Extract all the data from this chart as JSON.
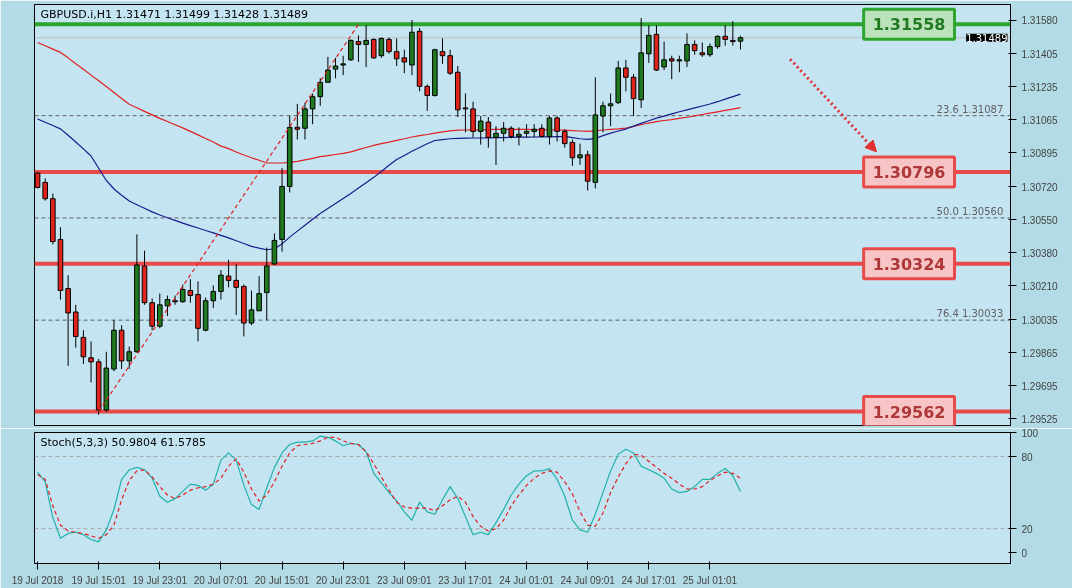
{
  "chart_data": [
    {
      "type": "candlestick",
      "title": "GBPUSD.i,H1  1.31471 1.31499 1.31428 1.31489",
      "categories": [
        null,
        null,
        null,
        null,
        null,
        null,
        null,
        null,
        null,
        null,
        null,
        null,
        null,
        null,
        null,
        null,
        null,
        null,
        null,
        null,
        null,
        null,
        null,
        null,
        null,
        null,
        null,
        null,
        null,
        null,
        null,
        null,
        null,
        null,
        null,
        null,
        null,
        null,
        null,
        null,
        null,
        null,
        null,
        null,
        null,
        null,
        null,
        null,
        null,
        null,
        null,
        null,
        null,
        null,
        null,
        null,
        null,
        null,
        null,
        null,
        null,
        null,
        null,
        null,
        null,
        null,
        null,
        null,
        null,
        null,
        null,
        null,
        null,
        null,
        null,
        null,
        null,
        null,
        null,
        null,
        null,
        null,
        null,
        null,
        null,
        null,
        null,
        null,
        null,
        null,
        null,
        null,
        null
      ],
      "ohlc": [
        [
          1.30791,
          1.30796,
          1.30712,
          1.30717
        ],
        [
          1.30743,
          1.30764,
          1.30649,
          1.30659
        ],
        [
          1.30659,
          1.30686,
          1.30423,
          1.30438
        ],
        [
          1.30449,
          1.30512,
          1.30139,
          1.30186
        ],
        [
          1.30196,
          1.30265,
          1.29797,
          1.3007
        ],
        [
          1.30075,
          1.30112,
          1.29891,
          1.29949
        ],
        [
          1.29944,
          1.29981,
          1.29807,
          1.29844
        ],
        [
          1.29839,
          1.29923,
          1.29712,
          1.29818
        ],
        [
          1.29818,
          1.29833,
          1.29545,
          1.2957
        ],
        [
          1.2957,
          1.2987,
          1.2956,
          1.29786
        ],
        [
          1.29781,
          1.30033,
          1.2977,
          1.29981
        ],
        [
          1.29981,
          1.30007,
          1.29781,
          1.29823
        ],
        [
          1.29823,
          1.29897,
          1.29781,
          1.2987
        ],
        [
          1.2987,
          1.30475,
          1.29865,
          1.30317
        ],
        [
          1.30312,
          1.30391,
          1.30112,
          1.30123
        ],
        [
          1.30123,
          1.30144,
          1.29981,
          1.30002
        ],
        [
          1.30002,
          1.3017,
          1.29991,
          1.30112
        ],
        [
          1.30107,
          1.3016,
          1.30054,
          1.30139
        ],
        [
          1.30128,
          1.3016,
          1.30112,
          1.30133
        ],
        [
          1.30128,
          1.30217,
          1.30123,
          1.30191
        ],
        [
          1.30186,
          1.30244,
          1.30123,
          1.3016
        ],
        [
          1.30165,
          1.30233,
          1.29923,
          1.29991
        ],
        [
          1.29981,
          1.30149,
          1.29975,
          1.30133
        ],
        [
          1.30133,
          1.30212,
          1.30096,
          1.30181
        ],
        [
          1.30181,
          1.30291,
          1.30139,
          1.30265
        ],
        [
          1.3026,
          1.30344,
          1.30202,
          1.30238
        ],
        [
          1.30238,
          1.30323,
          1.3006,
          1.30202
        ],
        [
          1.30207,
          1.30217,
          1.29949,
          1.30018
        ],
        [
          1.30018,
          1.30186,
          1.30007,
          1.30086
        ],
        [
          1.30081,
          1.3026,
          1.30081,
          1.3017
        ],
        [
          1.30175,
          1.30407,
          1.30033,
          1.30312
        ],
        [
          1.30323,
          1.3048,
          1.30317,
          1.30444
        ],
        [
          1.30449,
          1.30817,
          1.30386,
          1.30722
        ],
        [
          1.30722,
          1.31085,
          1.30691,
          1.31027
        ],
        [
          1.31027,
          1.31148,
          1.30964,
          1.31017
        ],
        [
          1.31022,
          1.31154,
          1.30964,
          1.31122
        ],
        [
          1.31122,
          1.31201,
          1.31043,
          1.31185
        ],
        [
          1.31185,
          1.3128,
          1.31138,
          1.31259
        ],
        [
          1.31259,
          1.3139,
          1.31259,
          1.31322
        ],
        [
          1.31327,
          1.31385,
          1.3128,
          1.31343
        ],
        [
          1.31348,
          1.31396,
          1.31296,
          1.31354
        ],
        [
          1.31375,
          1.3148,
          1.31369,
          1.31475
        ],
        [
          1.31469,
          1.31501,
          1.31364,
          1.31454
        ],
        [
          1.31454,
          1.31553,
          1.31338,
          1.31475
        ],
        [
          1.3148,
          1.31485,
          1.3138,
          1.31385
        ],
        [
          1.31396,
          1.3149,
          1.31385,
          1.31485
        ],
        [
          1.3148,
          1.3149,
          1.31406,
          1.31417
        ],
        [
          1.31417,
          1.31485,
          1.31343,
          1.3138
        ],
        [
          1.31385,
          1.31427,
          1.31306,
          1.31364
        ],
        [
          1.31348,
          1.3158,
          1.31296,
          1.31517
        ],
        [
          1.31522,
          1.31538,
          1.31212,
          1.31238
        ],
        [
          1.31238,
          1.31248,
          1.31112,
          1.31191
        ],
        [
          1.31191,
          1.31432,
          1.31185,
          1.31427
        ],
        [
          1.31417,
          1.31485,
          1.31354,
          1.31396
        ],
        [
          1.31396,
          1.31427,
          1.31296,
          1.31306
        ],
        [
          1.31311,
          1.31343,
          1.3108,
          1.31117
        ],
        [
          1.31127,
          1.31201,
          1.31001,
          1.31122
        ],
        [
          1.31122,
          1.31159,
          1.30975,
          1.31006
        ],
        [
          1.31006,
          1.31085,
          1.30938,
          1.31059
        ],
        [
          1.31054,
          1.3108,
          1.30922,
          1.30975
        ],
        [
          1.30975,
          1.31033,
          1.30833,
          1.30996
        ],
        [
          1.30996,
          1.31054,
          1.30954,
          1.31022
        ],
        [
          1.31022,
          1.31033,
          1.3097,
          1.3098
        ],
        [
          1.3098,
          1.31027,
          1.30933,
          1.30991
        ],
        [
          1.30996,
          1.31043,
          1.30975,
          1.31006
        ],
        [
          1.31006,
          1.31043,
          1.30975,
          1.31017
        ],
        [
          1.31022,
          1.31043,
          1.30975,
          1.3098
        ],
        [
          1.3098,
          1.31085,
          1.30938,
          1.31075
        ],
        [
          1.31075,
          1.31085,
          1.30954,
          1.31006
        ],
        [
          1.31006,
          1.31017,
          1.30922,
          1.30943
        ],
        [
          1.30949,
          1.30964,
          1.30828,
          1.3087
        ],
        [
          1.3087,
          1.30943,
          1.30833,
          1.30885
        ],
        [
          1.30885,
          1.30906,
          1.30701,
          1.30749
        ],
        [
          1.30743,
          1.31285,
          1.30712,
          1.31091
        ],
        [
          1.31085,
          1.31159,
          1.31001,
          1.31138
        ],
        [
          1.31138,
          1.31201,
          1.31033,
          1.31148
        ],
        [
          1.31154,
          1.31369,
          1.31148,
          1.31333
        ],
        [
          1.31333,
          1.31375,
          1.31212,
          1.31285
        ],
        [
          1.31285,
          1.31301,
          1.31085,
          1.31175
        ],
        [
          1.31169,
          1.3159,
          1.31127,
          1.31411
        ],
        [
          1.31406,
          1.31553,
          1.31359,
          1.31501
        ],
        [
          1.31506,
          1.31553,
          1.31317,
          1.31322
        ],
        [
          1.31338,
          1.31469,
          1.31322,
          1.31375
        ],
        [
          1.3138,
          1.31396,
          1.31275,
          1.31369
        ],
        [
          1.31369,
          1.31396,
          1.31311,
          1.31375
        ],
        [
          1.31369,
          1.31511,
          1.31338,
          1.31454
        ],
        [
          1.31454,
          1.31475,
          1.31401,
          1.31422
        ],
        [
          1.31411,
          1.31464,
          1.3139,
          1.31401
        ],
        [
          1.31401,
          1.31459,
          1.3139,
          1.31443
        ],
        [
          1.31443,
          1.31501,
          1.31432,
          1.31496
        ],
        [
          1.31496,
          1.31553,
          1.31448,
          1.3148
        ],
        [
          1.31475,
          1.31574,
          1.31448,
          1.31469
        ],
        [
          1.31471,
          1.31499,
          1.31428,
          1.31489
        ]
      ],
      "colors": [
        "#e0241b",
        "#e0241b",
        "#e0241b",
        "#e0241b",
        "#e0241b",
        "#e0241b",
        "#e0241b",
        "#e0241b",
        "#e0241b",
        "#1f7a1f",
        "#1f7a1f",
        "#e0241b",
        "#1f7a1f",
        "#1f7a1f",
        "#e0241b",
        "#e0241b",
        "#1f7a1f",
        "#1f7a1f",
        "#1f7a1f",
        "#1f7a1f",
        "#e0241b",
        "#e0241b",
        "#1f7a1f",
        "#1f7a1f",
        "#1f7a1f",
        "#e0241b",
        "#e0241b",
        "#e0241b",
        "#1f7a1f",
        "#1f7a1f",
        "#1f7a1f",
        "#1f7a1f",
        "#1f7a1f",
        "#1f7a1f",
        "#e0241b",
        "#1f7a1f",
        "#1f7a1f",
        "#1f7a1f",
        "#1f7a1f",
        "#1f7a1f",
        "#1f7a1f",
        "#1f7a1f",
        "#e0241b",
        "#1f7a1f",
        "#e0241b",
        "#1f7a1f",
        "#e0241b",
        "#e0241b",
        "#e0241b",
        "#1f7a1f",
        "#e0241b",
        "#e0241b",
        "#1f7a1f",
        "#e0241b",
        "#e0241b",
        "#e0241b",
        "#e0241b",
        "#e0241b",
        "#1f7a1f",
        "#e0241b",
        "#1f7a1f",
        "#1f7a1f",
        "#e0241b",
        "#1f7a1f",
        "#1f7a1f",
        "#1f7a1f",
        "#e0241b",
        "#1f7a1f",
        "#e0241b",
        "#e0241b",
        "#e0241b",
        "#1f7a1f",
        "#e0241b",
        "#1f7a1f",
        "#1f7a1f",
        "#1f7a1f",
        "#1f7a1f",
        "#e0241b",
        "#e0241b",
        "#1f7a1f",
        "#1f7a1f",
        "#e0241b",
        "#1f7a1f",
        "#e0241b",
        "#1f7a1f",
        "#1f7a1f",
        "#e0241b",
        "#e0241b",
        "#1f7a1f",
        "#1f7a1f",
        "#e0241b",
        "#e0241b",
        "#1f7a1f"
      ],
      "series": [
        {
          "type": "line",
          "color": "#e02020",
          "values": [
            1.31464,
            1.31447,
            1.3143,
            1.31413,
            1.31385,
            1.31355,
            1.31326,
            1.31296,
            1.31267,
            1.31237,
            1.31206,
            1.31175,
            1.31146,
            1.31128,
            1.31109,
            1.31091,
            1.31073,
            1.31057,
            1.3104,
            1.31024,
            1.31006,
            1.30988,
            1.30969,
            1.30951,
            1.3093,
            1.30917,
            1.309,
            1.30884,
            1.3087,
            1.30857,
            1.30843,
            1.30843,
            1.30843,
            1.30846,
            1.30851,
            1.30859,
            1.30867,
            1.30876,
            1.30881,
            1.30887,
            1.30893,
            1.309,
            1.30912,
            1.30923,
            1.30934,
            1.30943,
            1.30951,
            1.3096,
            1.30968,
            1.30977,
            1.30984,
            1.3099,
            1.30997,
            1.31003,
            1.31009,
            1.31012,
            1.31013,
            1.31014,
            1.31014,
            1.31015,
            1.31016,
            1.31016,
            1.31017,
            1.31016,
            1.31016,
            1.31015,
            1.31014,
            1.31014,
            1.31013,
            1.31012,
            1.3101,
            1.31008,
            1.31006,
            1.31009,
            1.31013,
            1.31016,
            1.31019,
            1.31023,
            1.31031,
            1.3104,
            1.31049,
            1.31056,
            1.31062,
            1.31067,
            1.31073,
            1.31079,
            1.31086,
            1.31093,
            1.311,
            1.31107,
            1.31114,
            1.31121,
            1.31128
          ]
        },
        {
          "type": "line",
          "color": "#1a1a8c",
          "values": [
            1.3107,
            1.31053,
            1.31036,
            1.31019,
            1.30986,
            1.30951,
            1.30916,
            1.30879,
            1.30816,
            1.30753,
            1.30709,
            1.30677,
            1.30647,
            1.30628,
            1.3061,
            1.30591,
            1.30575,
            1.30561,
            1.30547,
            1.30533,
            1.3052,
            1.30508,
            1.30495,
            1.30483,
            1.3047,
            1.30457,
            1.30442,
            1.30428,
            1.30413,
            1.30404,
            1.30396,
            1.30401,
            1.30426,
            1.30461,
            1.30492,
            1.30522,
            1.30553,
            1.30583,
            1.30608,
            1.30634,
            1.3066,
            1.30686,
            1.30714,
            1.30741,
            1.30769,
            1.30799,
            1.30831,
            1.30861,
            1.30882,
            1.30904,
            1.30923,
            1.30942,
            1.30959,
            1.30964,
            1.30968,
            1.3097,
            1.30971,
            1.30972,
            1.30972,
            1.30973,
            1.30974,
            1.30974,
            1.30975,
            1.30976,
            1.30976,
            1.30977,
            1.30978,
            1.30978,
            1.30979,
            1.3098,
            1.30974,
            1.30968,
            1.30965,
            1.30969,
            1.30984,
            1.30997,
            1.31008,
            1.31018,
            1.31033,
            1.31047,
            1.31061,
            1.31074,
            1.31085,
            1.31096,
            1.31107,
            1.31117,
            1.31127,
            1.31137,
            1.31147,
            1.31159,
            1.31172,
            1.31185,
            1.31198
          ]
        },
        {
          "type": "line",
          "color": "#e02020",
          "line_style": "dashed",
          "values": [
            null,
            null,
            null,
            null,
            null,
            null,
            null,
            null,
            1.29562,
            1.29621,
            1.29679,
            1.29738,
            1.29797,
            1.29856,
            1.29914,
            1.29973,
            1.30032,
            1.3009,
            1.30149,
            1.30208,
            1.30266,
            1.30325,
            1.30384,
            1.30443,
            1.30501,
            1.3056,
            1.30619,
            1.30677,
            1.30736,
            1.30795,
            1.30853,
            1.30912,
            1.30971,
            1.3103,
            1.31088,
            1.31147,
            1.31206,
            1.31264,
            1.31323,
            1.31382,
            1.3144,
            1.31499,
            1.31558,
            null,
            null,
            null,
            null,
            null,
            null,
            null,
            null,
            null,
            null,
            null,
            null,
            null,
            null,
            null,
            null,
            null,
            null,
            null,
            null,
            null,
            null,
            null,
            null,
            null,
            null,
            null,
            null,
            null,
            null,
            null,
            null,
            null,
            null,
            null,
            null,
            null,
            null,
            null,
            null,
            null,
            null,
            null,
            null,
            null,
            null,
            null,
            null,
            null,
            null
          ]
        }
      ],
      "ylim": [
        1.2949,
        1.3166
      ],
      "yticks": [
        {
          "value": 1.3158,
          "label": "1.31580"
        },
        1.31405,
        1.31235,
        1.31065,
        1.30895,
        {
          "value": 1.3072,
          "label": "1.30720"
        },
        {
          "value": 1.3055,
          "label": "1.30550"
        },
        {
          "value": 1.3038,
          "label": "1.30380"
        },
        {
          "value": 1.3021,
          "label": "1.30210"
        },
        1.30035,
        1.29865,
        1.29695,
        1.29525
      ],
      "tick_labels": "y",
      "grid": false,
      "ref_lines": [
        {
          "axis": "y",
          "value": 1.31489,
          "color": "#c0c0c0",
          "line_style": "solid"
        },
        {
          "axis": "y",
          "value": 1.31087,
          "label": "23.6  1.31087",
          "color": "#606060",
          "line_style": "dashed"
        },
        {
          "axis": "y",
          "value": 1.3056,
          "label": "50.0  1.30560",
          "color": "#606060",
          "line_style": "dashed"
        },
        {
          "axis": "y",
          "value": 1.30033,
          "label": "76.4  1.30033",
          "color": "#606060",
          "line_style": "dashed"
        },
        {
          "axis": "y",
          "value": 1.31558,
          "label": "1.31558",
          "color": "#2ea52e",
          "line_style": "solid"
        },
        {
          "axis": "y",
          "value": 1.30796,
          "label": "1.30796",
          "color": "#e84a4a",
          "line_style": "solid"
        },
        {
          "axis": "y",
          "value": 1.30324,
          "label": "1.30324",
          "color": "#e84a4a",
          "line_style": "solid"
        },
        {
          "axis": "y",
          "value": 1.29562,
          "label": "1.29562",
          "color": "#e84a4a",
          "line_style": "solid"
        }
      ],
      "annotations": [
        {
          "text": "1.31489",
          "y": 1.31489
        }
      ]
    },
    {
      "type": "line",
      "title": "Stoch(5,3,3) 50.9804 61.5785",
      "categories": [
        "19 Jul 2018",
        null,
        null,
        null,
        null,
        null,
        null,
        null,
        "19 Jul 15:01",
        null,
        null,
        null,
        null,
        null,
        null,
        null,
        "19 Jul 23:01",
        null,
        null,
        null,
        null,
        null,
        null,
        null,
        "20 Jul 07:01",
        null,
        null,
        null,
        null,
        null,
        null,
        null,
        "20 Jul 15:01",
        null,
        null,
        null,
        null,
        null,
        null,
        null,
        "20 Jul 23:01",
        null,
        null,
        null,
        null,
        null,
        null,
        null,
        "23 Jul 09:01",
        null,
        null,
        null,
        null,
        null,
        null,
        null,
        "23 Jul 17:01",
        null,
        null,
        null,
        null,
        null,
        null,
        null,
        "24 Jul 01:01",
        null,
        null,
        null,
        null,
        null,
        null,
        null,
        "24 Jul 09:01",
        null,
        null,
        null,
        null,
        null,
        null,
        null,
        "24 Jul 17:01",
        null,
        null,
        null,
        null,
        null,
        null,
        null,
        "25 Jul 01:01",
        null,
        null,
        null,
        null
      ],
      "series": [
        {
          "color": "#20b2aa",
          "values": [
            67,
            59,
            29,
            12,
            16,
            17,
            15,
            11,
            9,
            19,
            36,
            61,
            69,
            71,
            69,
            62,
            47,
            42,
            45,
            51,
            57,
            56,
            52,
            57,
            77,
            83,
            77,
            56,
            40,
            36,
            54,
            71,
            83,
            90,
            92,
            92,
            93,
            97,
            96,
            93,
            89,
            91,
            90,
            84,
            66,
            58,
            50,
            43,
            34,
            27,
            42,
            34,
            32,
            44,
            55,
            45,
            30,
            15,
            17,
            15,
            25,
            36,
            48,
            57,
            64,
            68,
            68,
            70,
            61,
            47,
            27,
            19,
            17,
            32,
            50,
            68,
            82,
            86,
            83,
            72,
            69,
            66,
            62,
            53,
            50,
            51,
            55,
            61,
            61,
            66,
            70,
            64,
            51
          ]
        },
        {
          "color": "#e02020",
          "line_style": "dashed",
          "values": [
            65,
            61,
            39,
            23,
            18,
            17,
            16,
            14,
            12,
            15,
            23,
            44,
            60,
            68,
            69,
            63,
            55,
            48,
            45,
            48,
            52,
            54,
            55,
            57,
            62,
            72,
            78,
            67,
            53,
            43,
            48,
            59,
            72,
            83,
            89,
            90,
            91,
            93,
            96,
            96,
            93,
            91,
            90,
            84,
            74,
            63,
            52,
            42,
            38,
            37,
            37,
            37,
            35,
            39,
            44,
            47,
            42,
            30,
            22,
            18,
            20,
            27,
            39,
            48,
            56,
            62,
            66,
            68,
            67,
            59,
            49,
            34,
            23,
            22,
            33,
            50,
            63,
            74,
            82,
            81,
            76,
            71,
            66,
            62,
            57,
            53,
            53,
            55,
            60,
            64,
            67,
            66,
            62
          ]
        }
      ],
      "ylim": [
        -9,
        100
      ],
      "yticks": [
        0,
        20,
        80,
        100
      ],
      "grid": false,
      "ref_lines": [
        {
          "axis": "y",
          "value": 80,
          "color": "#a8a8a8",
          "line_style": "dashed"
        },
        {
          "axis": "y",
          "value": 20,
          "color": "#a8a8a8",
          "line_style": "dashed"
        }
      ]
    }
  ]
}
